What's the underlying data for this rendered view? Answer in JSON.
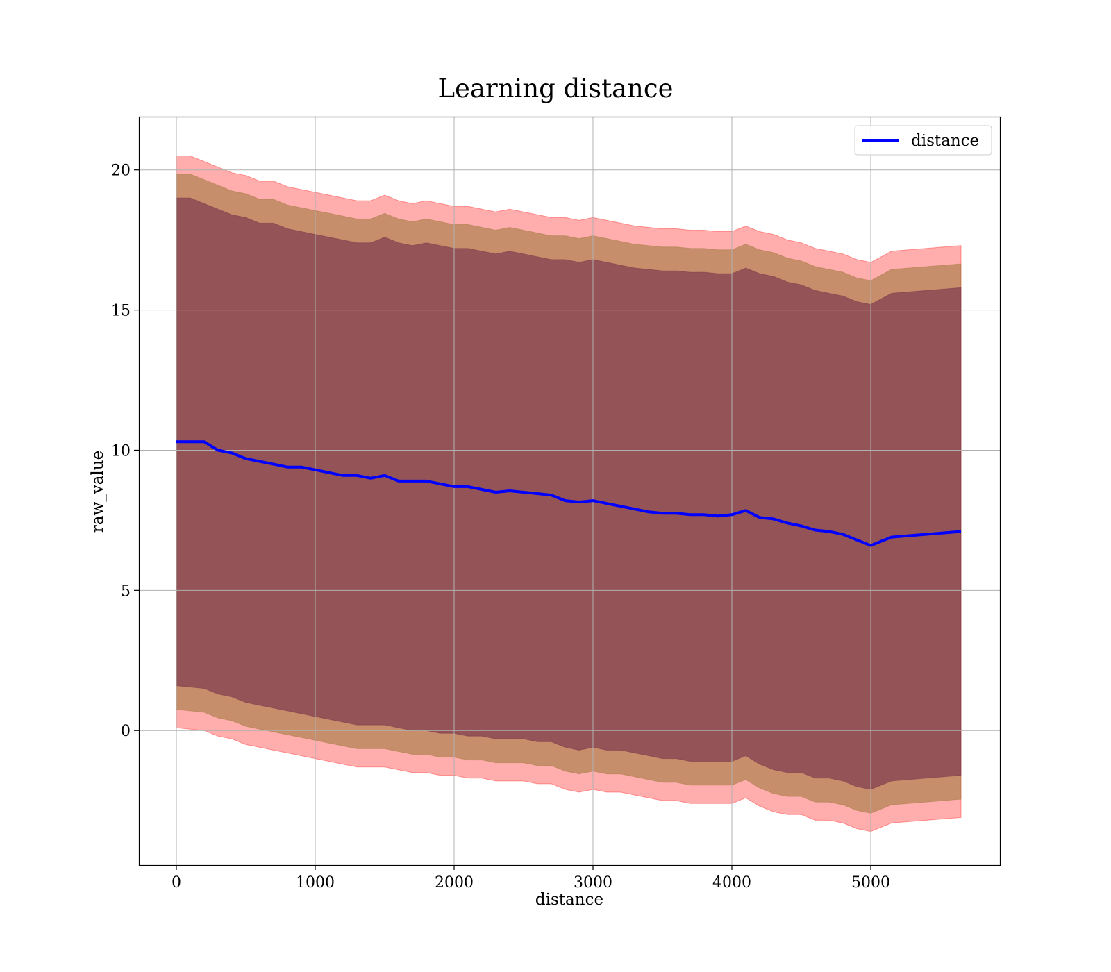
{
  "chart_data": {
    "type": "line",
    "title": "Learning distance",
    "xlabel": "distance",
    "ylabel": "raw_value",
    "xlim": [
      -270,
      5930
    ],
    "ylim": [
      -4.8,
      21.9
    ],
    "xticks": [
      0,
      1000,
      2000,
      3000,
      4000,
      5000
    ],
    "yticks": [
      0,
      5,
      10,
      15,
      20
    ],
    "grid": true,
    "legend": {
      "placement": "top-right",
      "entries": [
        "distance"
      ]
    },
    "colors": {
      "line": "#0000ff",
      "band_outer": "#ff0000",
      "band_middle": "#8f6f2a",
      "band_inner": "#6a2246",
      "grid": "#b0b0b0"
    },
    "x": [
      0,
      100,
      200,
      300,
      400,
      500,
      600,
      700,
      800,
      900,
      1000,
      1100,
      1200,
      1300,
      1400,
      1500,
      1600,
      1700,
      1800,
      1900,
      2000,
      2100,
      2200,
      2300,
      2400,
      2500,
      2600,
      2700,
      2800,
      2900,
      3000,
      3100,
      3200,
      3300,
      3400,
      3500,
      3600,
      3700,
      3800,
      3900,
      4000,
      4100,
      4200,
      4300,
      4400,
      4500,
      4600,
      4700,
      4800,
      4900,
      5000,
      5150,
      5650
    ],
    "series": [
      {
        "name": "distance",
        "values": [
          10.3,
          10.3,
          10.3,
          10.0,
          9.9,
          9.7,
          9.6,
          9.5,
          9.4,
          9.4,
          9.3,
          9.2,
          9.1,
          9.1,
          9.0,
          9.1,
          8.9,
          8.9,
          8.9,
          8.8,
          8.7,
          8.7,
          8.6,
          8.5,
          8.55,
          8.5,
          8.45,
          8.4,
          8.2,
          8.15,
          8.2,
          8.1,
          8.0,
          7.9,
          7.8,
          7.75,
          7.75,
          7.7,
          7.7,
          7.65,
          7.7,
          7.85,
          7.6,
          7.55,
          7.4,
          7.3,
          7.15,
          7.1,
          7.0,
          6.8,
          6.6,
          6.9,
          7.1
        ]
      }
    ],
    "bands": [
      {
        "level": "outer",
        "upper": [
          20.5,
          20.5,
          20.3,
          20.1,
          19.9,
          19.8,
          19.6,
          19.6,
          19.4,
          19.3,
          19.2,
          19.1,
          19.0,
          18.9,
          18.9,
          19.1,
          18.9,
          18.8,
          18.9,
          18.8,
          18.7,
          18.7,
          18.6,
          18.5,
          18.6,
          18.5,
          18.4,
          18.3,
          18.3,
          18.2,
          18.3,
          18.2,
          18.1,
          18.0,
          17.95,
          17.9,
          17.9,
          17.85,
          17.85,
          17.8,
          17.8,
          18.0,
          17.8,
          17.7,
          17.5,
          17.4,
          17.2,
          17.1,
          17.0,
          16.8,
          16.7,
          17.1,
          17.3
        ],
        "lower": [
          0.1,
          0.05,
          0.0,
          -0.2,
          -0.3,
          -0.5,
          -0.6,
          -0.7,
          -0.8,
          -0.9,
          -1.0,
          -1.1,
          -1.2,
          -1.3,
          -1.3,
          -1.3,
          -1.4,
          -1.5,
          -1.5,
          -1.6,
          -1.6,
          -1.7,
          -1.7,
          -1.8,
          -1.8,
          -1.8,
          -1.9,
          -1.9,
          -2.1,
          -2.2,
          -2.1,
          -2.2,
          -2.2,
          -2.3,
          -2.4,
          -2.5,
          -2.5,
          -2.6,
          -2.6,
          -2.6,
          -2.6,
          -2.4,
          -2.7,
          -2.9,
          -3.0,
          -3.0,
          -3.2,
          -3.2,
          -3.3,
          -3.5,
          -3.6,
          -3.3,
          -3.1
        ]
      },
      {
        "level": "middle",
        "upper": [
          19.85,
          19.85,
          19.65,
          19.45,
          19.25,
          19.15,
          18.95,
          18.95,
          18.75,
          18.65,
          18.55,
          18.45,
          18.35,
          18.25,
          18.25,
          18.45,
          18.25,
          18.15,
          18.25,
          18.15,
          18.05,
          18.05,
          17.95,
          17.85,
          17.95,
          17.85,
          17.75,
          17.65,
          17.65,
          17.55,
          17.65,
          17.55,
          17.45,
          17.35,
          17.3,
          17.25,
          17.25,
          17.2,
          17.2,
          17.15,
          17.15,
          17.35,
          17.15,
          17.05,
          16.85,
          16.75,
          16.55,
          16.45,
          16.35,
          16.15,
          16.05,
          16.45,
          16.65
        ],
        "lower": [
          0.75,
          0.7,
          0.65,
          0.45,
          0.35,
          0.15,
          0.05,
          -0.05,
          -0.15,
          -0.25,
          -0.35,
          -0.45,
          -0.55,
          -0.65,
          -0.65,
          -0.65,
          -0.75,
          -0.85,
          -0.85,
          -0.95,
          -0.95,
          -1.05,
          -1.05,
          -1.15,
          -1.15,
          -1.15,
          -1.25,
          -1.25,
          -1.45,
          -1.55,
          -1.45,
          -1.55,
          -1.55,
          -1.65,
          -1.75,
          -1.85,
          -1.85,
          -1.95,
          -1.95,
          -1.95,
          -1.95,
          -1.75,
          -2.05,
          -2.25,
          -2.35,
          -2.35,
          -2.55,
          -2.55,
          -2.65,
          -2.85,
          -2.95,
          -2.65,
          -2.45
        ]
      },
      {
        "level": "inner",
        "upper": [
          19.0,
          19.0,
          18.8,
          18.6,
          18.4,
          18.3,
          18.1,
          18.1,
          17.9,
          17.8,
          17.7,
          17.6,
          17.5,
          17.4,
          17.4,
          17.6,
          17.4,
          17.3,
          17.4,
          17.3,
          17.2,
          17.2,
          17.1,
          17.0,
          17.1,
          17.0,
          16.9,
          16.8,
          16.8,
          16.7,
          16.8,
          16.7,
          16.6,
          16.5,
          16.45,
          16.4,
          16.4,
          16.35,
          16.35,
          16.3,
          16.3,
          16.5,
          16.3,
          16.2,
          16.0,
          15.9,
          15.7,
          15.6,
          15.5,
          15.3,
          15.2,
          15.6,
          15.8
        ],
        "lower": [
          1.6,
          1.55,
          1.5,
          1.3,
          1.2,
          1.0,
          0.9,
          0.8,
          0.7,
          0.6,
          0.5,
          0.4,
          0.3,
          0.2,
          0.2,
          0.2,
          0.1,
          0.0,
          0.0,
          -0.1,
          -0.1,
          -0.2,
          -0.2,
          -0.3,
          -0.3,
          -0.3,
          -0.4,
          -0.4,
          -0.6,
          -0.7,
          -0.6,
          -0.7,
          -0.7,
          -0.8,
          -0.9,
          -1.0,
          -1.0,
          -1.1,
          -1.1,
          -1.1,
          -1.1,
          -0.9,
          -1.2,
          -1.4,
          -1.5,
          -1.5,
          -1.7,
          -1.7,
          -1.8,
          -2.0,
          -2.1,
          -1.8,
          -1.6
        ]
      }
    ]
  }
}
